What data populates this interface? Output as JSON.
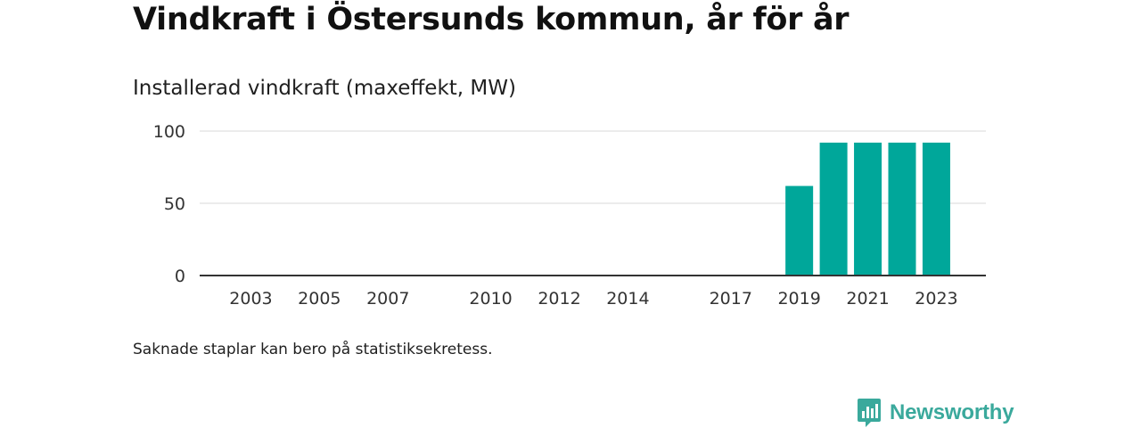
{
  "header": {
    "title": "Vindkraft i Östersunds kommun, år för år",
    "subtitle": "Installerad vindkraft (maxeffekt, MW)"
  },
  "footnote": "Saknade staplar kan bero på statistiksekretess.",
  "brand": {
    "name": "Newsworthy",
    "icon": "newsworthy-logo-icon",
    "color": "#3aa99c"
  },
  "colors": {
    "bar": "#00a79a",
    "grid": "#d9d9d9",
    "axis": "#333333"
  },
  "chart_data": {
    "type": "bar",
    "title": "Installerad vindkraft (maxeffekt, MW)",
    "xlabel": "",
    "ylabel": "",
    "ylim": [
      0,
      100
    ],
    "yticks": [
      0,
      50,
      100
    ],
    "grid": true,
    "categories": [
      "2002",
      "2003",
      "2004",
      "2005",
      "2006",
      "2007",
      "2008",
      "2009",
      "2010",
      "2011",
      "2012",
      "2013",
      "2014",
      "2015",
      "2016",
      "2017",
      "2018",
      "2019",
      "2020",
      "2021",
      "2022",
      "2023"
    ],
    "values": [
      0,
      0,
      0,
      0,
      0,
      0,
      0,
      0,
      0,
      0,
      0,
      0,
      0,
      0,
      0,
      0,
      0,
      62,
      92,
      92,
      92,
      92
    ],
    "xtick_labels": [
      "2003",
      "2005",
      "2007",
      "2010",
      "2012",
      "2014",
      "2017",
      "2019",
      "2021",
      "2023"
    ]
  }
}
